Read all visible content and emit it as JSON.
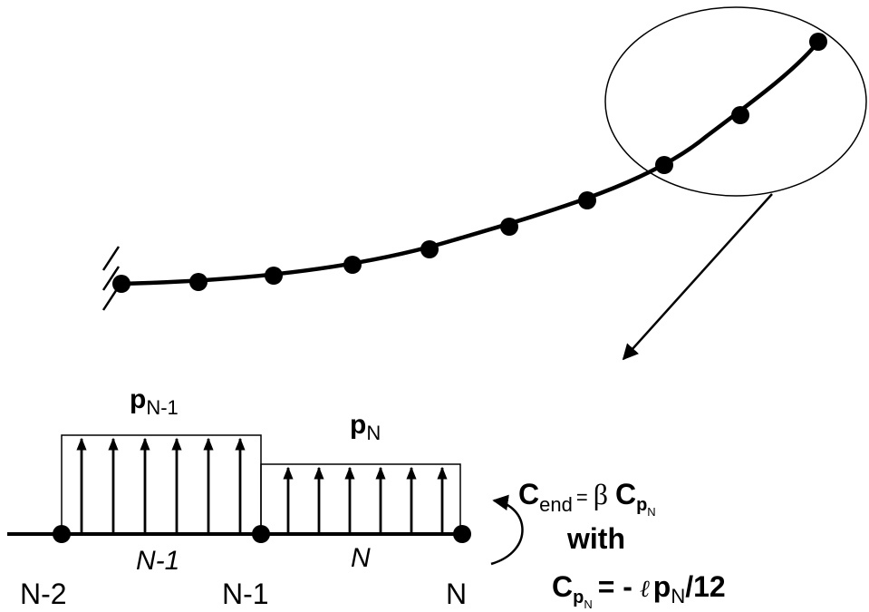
{
  "colors": {
    "ink": "#000000",
    "background": "#ffffff"
  },
  "beam_elements": [
    {
      "label": "N-1",
      "load_label_main": "p",
      "load_label_sub": "N-1"
    },
    {
      "label": "N",
      "load_label_main": "p",
      "load_label_sub": "N"
    }
  ],
  "node_labels": [
    "N-2",
    "N-1",
    "N"
  ],
  "equations": {
    "c_end": {
      "lhs_main": "C",
      "lhs_sub": "end",
      "equals": "=",
      "beta": "β",
      "rhs_main": "C",
      "rhs_sub": "p",
      "rhs_subsub": "N"
    },
    "with_text": "with",
    "c_pn": {
      "lhs_main": "C",
      "lhs_sub": "p",
      "lhs_subsub": "N",
      "equals_minus": "= -",
      "ell": "ℓ",
      "p": "p",
      "p_sub": "N",
      "tail": "/12"
    }
  }
}
